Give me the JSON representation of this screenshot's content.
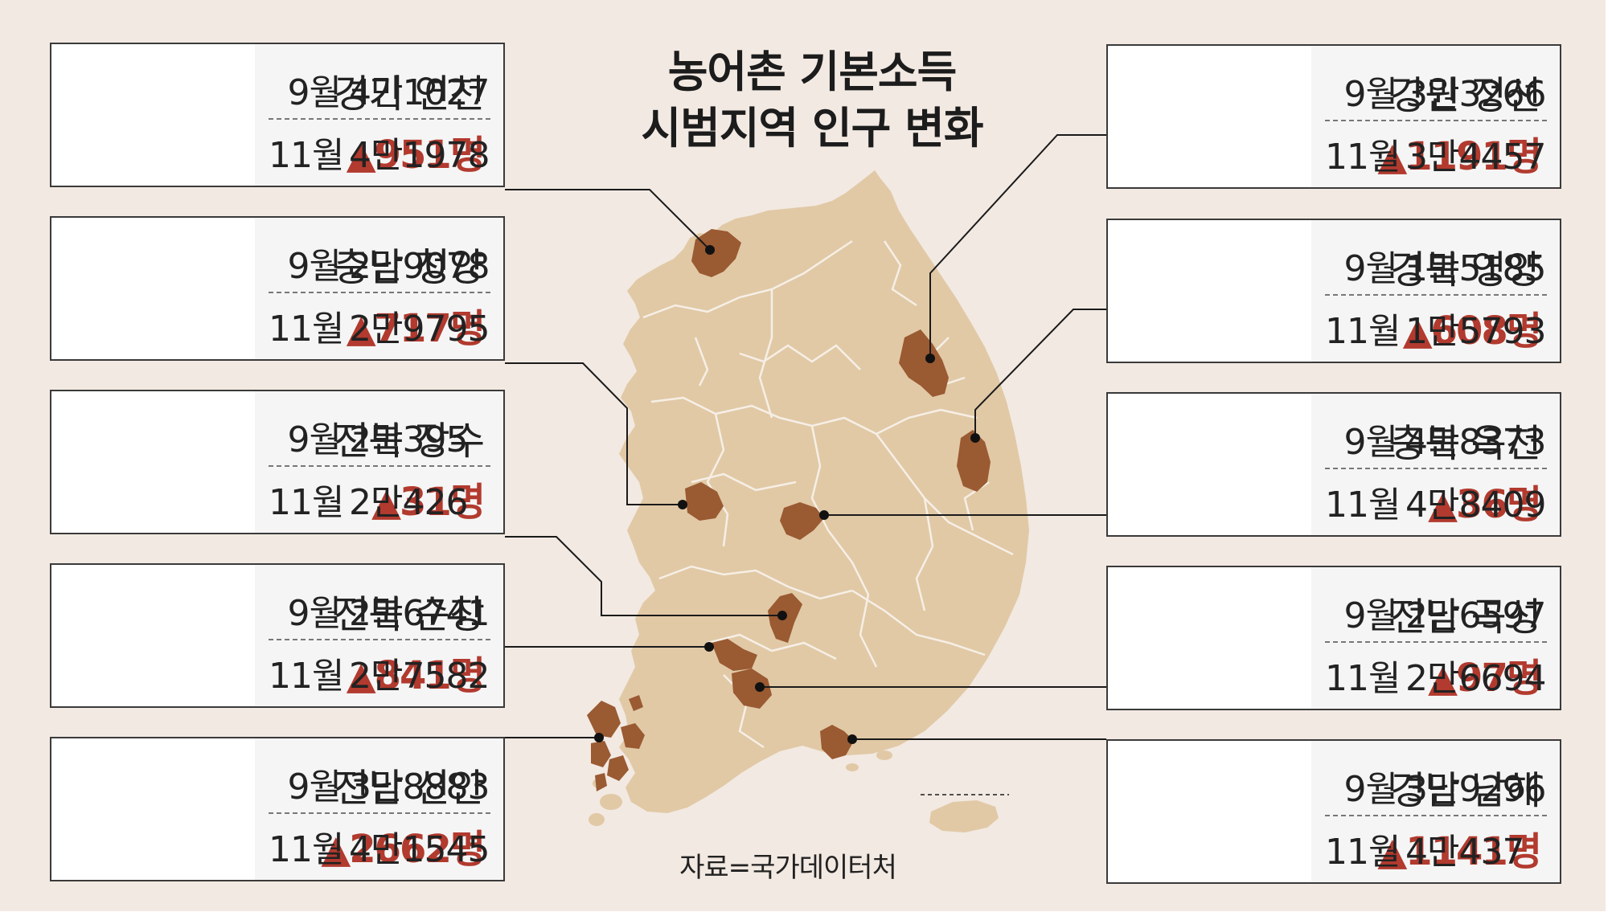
{
  "title": "농어촌 기본소득\n시범지역 인구 변화",
  "source": "자료=국가데이터처",
  "colors": {
    "background": "#f2e9e2",
    "land": "#e1c9a6",
    "highlight": "#9a5a32",
    "change_red": "#b23a2e",
    "leader_line": "#1a1a1a"
  },
  "regions": [
    {
      "name": "경기 연천",
      "change": "▲951명",
      "month1": "9월",
      "pop1": "4만1027",
      "month2": "11월",
      "pop2": "4만1978"
    },
    {
      "name": "충남 청양",
      "change": "▲717명",
      "month1": "9월",
      "pop1": "2만9078",
      "month2": "11월",
      "pop2": "2만9795"
    },
    {
      "name": "전북 장수",
      "change": "▲31명",
      "month1": "9월",
      "pop1": "2만395",
      "month2": "11월",
      "pop2": "2만426"
    },
    {
      "name": "전북 순창",
      "change": "▲841명",
      "month1": "9월",
      "pop1": "2만6741",
      "month2": "11월",
      "pop2": "2만7582"
    },
    {
      "name": "전남 신안",
      "change": "▲2662명",
      "month1": "9월",
      "pop1": "3만8883",
      "month2": "11월",
      "pop2": "4만1545"
    },
    {
      "name": "강원 정선",
      "change": "▲1191명",
      "month1": "9월",
      "pop1": "3만3266",
      "month2": "11월",
      "pop2": "3만4457"
    },
    {
      "name": "경북 영양",
      "change": "▲608명",
      "month1": "9월",
      "pop1": "1만5185",
      "month2": "11월",
      "pop2": "1만5793"
    },
    {
      "name": "충북 옥천",
      "change": "▲36명",
      "month1": "9월",
      "pop1": "4만8373",
      "month2": "11월",
      "pop2": "4만8409"
    },
    {
      "name": "전남 곡성",
      "change": "▲97명",
      "month1": "9월",
      "pop1": "2만6597",
      "month2": "11월",
      "pop2": "2만6694"
    },
    {
      "name": "경남 남해",
      "change": "▲1141명",
      "month1": "9월",
      "pop1": "3만9296",
      "month2": "11월",
      "pop2": "4만437"
    }
  ]
}
